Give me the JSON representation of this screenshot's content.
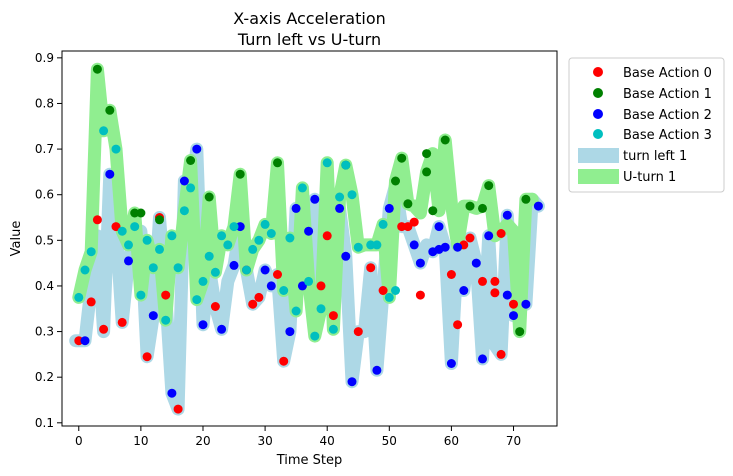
{
  "chart_data": {
    "type": "scatter",
    "title": [
      "X-axis Acceleration",
      "Turn left vs U-turn"
    ],
    "xlabel": "Time Step",
    "ylabel": "Value",
    "xlim": [
      -2.7,
      77.0
    ],
    "ylim": [
      0.093,
      0.915
    ],
    "xticks": [
      0,
      10,
      20,
      30,
      40,
      50,
      60,
      70
    ],
    "yticks": [
      0.1,
      0.2,
      0.3,
      0.4,
      0.5,
      0.6,
      0.7,
      0.8,
      0.9
    ],
    "grid": false,
    "legend_position": "outside-top-right",
    "bands": [
      {
        "name": "turn left 1",
        "color": "#add8e6",
        "points": [
          [
            -0.5,
            0.28
          ],
          [
            1,
            0.28
          ],
          [
            2,
            0.4
          ],
          [
            3,
            0.51
          ],
          [
            4,
            0.3
          ],
          [
            5,
            0.645
          ],
          [
            6,
            0.53
          ],
          [
            7,
            0.32
          ],
          [
            8,
            0.455
          ],
          [
            9,
            0.51
          ],
          [
            10,
            0.52
          ],
          [
            11,
            0.245
          ],
          [
            12,
            0.335
          ],
          [
            13,
            0.55
          ],
          [
            14,
            0.38
          ],
          [
            15,
            0.165
          ],
          [
            16,
            0.13
          ],
          [
            17,
            0.63
          ],
          [
            18,
            0.6
          ],
          [
            19,
            0.7
          ],
          [
            20,
            0.315
          ],
          [
            21,
            0.44
          ],
          [
            22,
            0.355
          ],
          [
            23,
            0.305
          ],
          [
            24,
            0.41
          ],
          [
            25,
            0.445
          ],
          [
            26,
            0.53
          ],
          [
            27,
            0.435
          ],
          [
            28,
            0.36
          ],
          [
            29,
            0.375
          ],
          [
            30,
            0.435
          ],
          [
            31,
            0.4
          ],
          [
            32,
            0.425
          ],
          [
            33,
            0.235
          ],
          [
            34,
            0.3
          ],
          [
            35,
            0.57
          ],
          [
            36,
            0.4
          ],
          [
            37,
            0.52
          ],
          [
            38,
            0.59
          ],
          [
            39,
            0.4
          ],
          [
            40,
            0.51
          ],
          [
            41,
            0.335
          ],
          [
            42,
            0.57
          ],
          [
            43,
            0.465
          ],
          [
            44,
            0.19
          ],
          [
            45,
            0.3
          ],
          [
            46,
            0.3
          ],
          [
            47,
            0.44
          ],
          [
            48,
            0.215
          ],
          [
            49,
            0.39
          ],
          [
            50,
            0.57
          ],
          [
            51,
            0.62
          ],
          [
            52,
            0.53
          ],
          [
            53,
            0.53
          ],
          [
            54,
            0.49
          ],
          [
            55,
            0.45
          ],
          [
            56,
            0.49
          ],
          [
            57,
            0.475
          ],
          [
            58,
            0.53
          ],
          [
            59,
            0.485
          ],
          [
            60,
            0.23
          ],
          [
            61,
            0.485
          ],
          [
            62,
            0.39
          ],
          [
            63,
            0.505
          ],
          [
            64,
            0.45
          ],
          [
            65,
            0.24
          ],
          [
            66,
            0.51
          ],
          [
            67,
            0.27
          ],
          [
            68,
            0.25
          ],
          [
            69,
            0.555
          ],
          [
            70,
            0.335
          ],
          [
            71,
            0.365
          ],
          [
            72,
            0.36
          ],
          [
            73,
            0.59
          ],
          [
            74,
            0.575
          ]
        ]
      },
      {
        "name": "U-turn 1",
        "color": "#90ee90",
        "points": [
          [
            0,
            0.375
          ],
          [
            1,
            0.435
          ],
          [
            2,
            0.475
          ],
          [
            3,
            0.875
          ],
          [
            4,
            0.74
          ],
          [
            5,
            0.785
          ],
          [
            6,
            0.7
          ],
          [
            7,
            0.52
          ],
          [
            8,
            0.49
          ],
          [
            9,
            0.56
          ],
          [
            10,
            0.38
          ],
          [
            11,
            0.5
          ],
          [
            12,
            0.44
          ],
          [
            13,
            0.48
          ],
          [
            14,
            0.325
          ],
          [
            15,
            0.51
          ],
          [
            16,
            0.44
          ],
          [
            17,
            0.565
          ],
          [
            18,
            0.675
          ],
          [
            19,
            0.37
          ],
          [
            20,
            0.41
          ],
          [
            21,
            0.595
          ],
          [
            22,
            0.43
          ],
          [
            23,
            0.51
          ],
          [
            24,
            0.49
          ],
          [
            25,
            0.53
          ],
          [
            26,
            0.645
          ],
          [
            27,
            0.435
          ],
          [
            28,
            0.48
          ],
          [
            29,
            0.5
          ],
          [
            30,
            0.535
          ],
          [
            31,
            0.515
          ],
          [
            32,
            0.67
          ],
          [
            33,
            0.39
          ],
          [
            34,
            0.505
          ],
          [
            35,
            0.345
          ],
          [
            36,
            0.615
          ],
          [
            37,
            0.41
          ],
          [
            38,
            0.29
          ],
          [
            39,
            0.35
          ],
          [
            40,
            0.67
          ],
          [
            41,
            0.305
          ],
          [
            42,
            0.595
          ],
          [
            43,
            0.665
          ],
          [
            44,
            0.6
          ],
          [
            45,
            0.485
          ],
          [
            46,
            0.49
          ],
          [
            47,
            0.49
          ],
          [
            48,
            0.49
          ],
          [
            49,
            0.535
          ],
          [
            50,
            0.375
          ],
          [
            51,
            0.63
          ],
          [
            52,
            0.68
          ],
          [
            53,
            0.58
          ],
          [
            54,
            0.575
          ],
          [
            55,
            0.56
          ],
          [
            56,
            0.65
          ],
          [
            57,
            0.69
          ],
          [
            58,
            0.565
          ],
          [
            59,
            0.72
          ],
          [
            60,
            0.58
          ],
          [
            61,
            0.49
          ],
          [
            62,
            0.575
          ],
          [
            63,
            0.575
          ],
          [
            64,
            0.57
          ],
          [
            65,
            0.575
          ],
          [
            66,
            0.62
          ],
          [
            67,
            0.51
          ],
          [
            68,
            0.52
          ],
          [
            69,
            0.535
          ],
          [
            70,
            0.52
          ],
          [
            71,
            0.3
          ],
          [
            72,
            0.59
          ],
          [
            73,
            0.59
          ]
        ]
      }
    ],
    "series": [
      {
        "name": "Base Action 0",
        "color": "#ff0000",
        "points": [
          [
            0,
            0.28
          ],
          [
            2,
            0.365
          ],
          [
            3,
            0.545
          ],
          [
            4,
            0.305
          ],
          [
            6,
            0.53
          ],
          [
            7,
            0.32
          ],
          [
            11,
            0.245
          ],
          [
            13,
            0.55
          ],
          [
            14,
            0.38
          ],
          [
            16,
            0.13
          ],
          [
            22,
            0.355
          ],
          [
            27,
            0.435
          ],
          [
            28,
            0.36
          ],
          [
            29,
            0.375
          ],
          [
            32,
            0.425
          ],
          [
            33,
            0.235
          ],
          [
            39,
            0.4
          ],
          [
            40,
            0.51
          ],
          [
            41,
            0.335
          ],
          [
            45,
            0.3
          ],
          [
            47,
            0.44
          ],
          [
            49,
            0.39
          ],
          [
            52,
            0.53
          ],
          [
            53,
            0.53
          ],
          [
            54,
            0.54
          ],
          [
            55,
            0.38
          ],
          [
            60,
            0.425
          ],
          [
            61,
            0.315
          ],
          [
            62,
            0.49
          ],
          [
            63,
            0.505
          ],
          [
            65,
            0.41
          ],
          [
            67,
            0.41
          ],
          [
            67,
            0.385
          ],
          [
            68,
            0.515
          ],
          [
            68,
            0.25
          ],
          [
            70,
            0.36
          ]
        ]
      },
      {
        "name": "Base Action 1",
        "color": "#008000",
        "points": [
          [
            3,
            0.875
          ],
          [
            5,
            0.785
          ],
          [
            9,
            0.56
          ],
          [
            10,
            0.56
          ],
          [
            13,
            0.545
          ],
          [
            18,
            0.675
          ],
          [
            21,
            0.595
          ],
          [
            26,
            0.645
          ],
          [
            32,
            0.67
          ],
          [
            43,
            0.665
          ],
          [
            51,
            0.63
          ],
          [
            52,
            0.68
          ],
          [
            53,
            0.58
          ],
          [
            56,
            0.69
          ],
          [
            56,
            0.65
          ],
          [
            57,
            0.565
          ],
          [
            59,
            0.72
          ],
          [
            63,
            0.575
          ],
          [
            65,
            0.57
          ],
          [
            66,
            0.62
          ],
          [
            71,
            0.3
          ],
          [
            72,
            0.59
          ]
        ]
      },
      {
        "name": "Base Action 2",
        "color": "#0000ff",
        "points": [
          [
            1,
            0.28
          ],
          [
            5,
            0.645
          ],
          [
            8,
            0.455
          ],
          [
            12,
            0.335
          ],
          [
            15,
            0.165
          ],
          [
            17,
            0.63
          ],
          [
            19,
            0.7
          ],
          [
            20,
            0.315
          ],
          [
            23,
            0.305
          ],
          [
            25,
            0.445
          ],
          [
            26,
            0.53
          ],
          [
            30,
            0.435
          ],
          [
            31,
            0.4
          ],
          [
            34,
            0.3
          ],
          [
            35,
            0.57
          ],
          [
            36,
            0.4
          ],
          [
            37,
            0.52
          ],
          [
            38,
            0.59
          ],
          [
            42,
            0.57
          ],
          [
            43,
            0.465
          ],
          [
            44,
            0.19
          ],
          [
            48,
            0.215
          ],
          [
            50,
            0.57
          ],
          [
            54,
            0.49
          ],
          [
            55,
            0.45
          ],
          [
            57,
            0.475
          ],
          [
            58,
            0.53
          ],
          [
            58,
            0.48
          ],
          [
            59,
            0.485
          ],
          [
            60,
            0.23
          ],
          [
            61,
            0.485
          ],
          [
            62,
            0.39
          ],
          [
            64,
            0.45
          ],
          [
            65,
            0.24
          ],
          [
            66,
            0.51
          ],
          [
            69,
            0.38
          ],
          [
            69,
            0.555
          ],
          [
            70,
            0.335
          ],
          [
            72,
            0.36
          ],
          [
            74,
            0.575
          ]
        ]
      },
      {
        "name": "Base Action 3",
        "color": "#00bfbf",
        "points": [
          [
            0,
            0.375
          ],
          [
            1,
            0.435
          ],
          [
            2,
            0.475
          ],
          [
            4,
            0.74
          ],
          [
            6,
            0.7
          ],
          [
            7,
            0.52
          ],
          [
            8,
            0.49
          ],
          [
            9,
            0.53
          ],
          [
            10,
            0.38
          ],
          [
            11,
            0.5
          ],
          [
            12,
            0.44
          ],
          [
            13,
            0.48
          ],
          [
            14,
            0.325
          ],
          [
            15,
            0.51
          ],
          [
            16,
            0.44
          ],
          [
            17,
            0.565
          ],
          [
            18,
            0.615
          ],
          [
            19,
            0.37
          ],
          [
            20,
            0.41
          ],
          [
            21,
            0.465
          ],
          [
            22,
            0.43
          ],
          [
            23,
            0.51
          ],
          [
            24,
            0.49
          ],
          [
            25,
            0.53
          ],
          [
            27,
            0.435
          ],
          [
            28,
            0.48
          ],
          [
            29,
            0.5
          ],
          [
            30,
            0.535
          ],
          [
            31,
            0.515
          ],
          [
            33,
            0.39
          ],
          [
            34,
            0.505
          ],
          [
            35,
            0.345
          ],
          [
            36,
            0.615
          ],
          [
            37,
            0.41
          ],
          [
            38,
            0.29
          ],
          [
            39,
            0.35
          ],
          [
            40,
            0.67
          ],
          [
            41,
            0.305
          ],
          [
            42,
            0.595
          ],
          [
            43,
            0.665
          ],
          [
            44,
            0.6
          ],
          [
            45,
            0.485
          ],
          [
            47,
            0.49
          ],
          [
            48,
            0.49
          ],
          [
            49,
            0.535
          ],
          [
            50,
            0.375
          ],
          [
            51,
            0.39
          ]
        ]
      }
    ]
  }
}
